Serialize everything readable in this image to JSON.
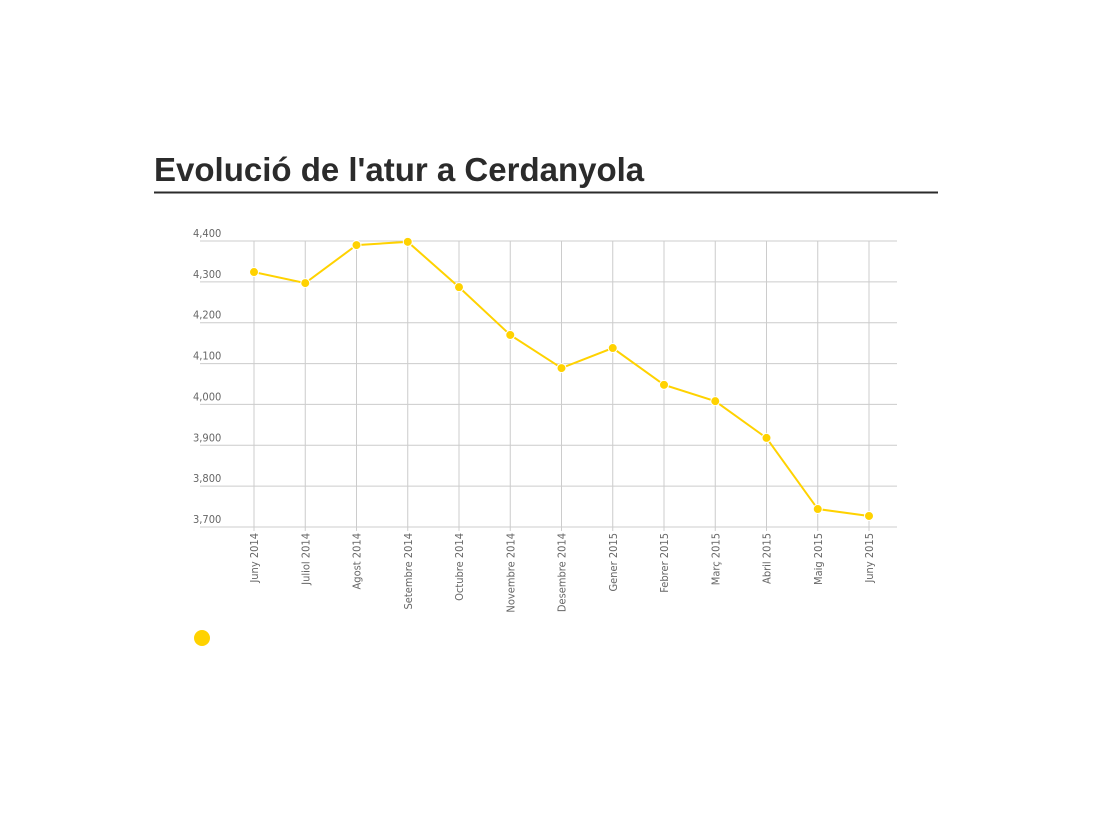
{
  "chart_data": {
    "type": "line",
    "title": "Evolució de l'atur a Cerdanyola",
    "categories": [
      "Juny 2014",
      "Juliol 2014",
      "Agost 2014",
      "Setembre 2014",
      "Octubre 2014",
      "Novembre 2014",
      "Desembre 2014",
      "Gener 2015",
      "Febrer 2015",
      "Març 2015",
      "Abril 2015",
      "Maig 2015",
      "Juny 2015"
    ],
    "values": [
      4324,
      4297,
      4390,
      4398,
      4287,
      4170,
      4089,
      4138,
      4048,
      4008,
      3918,
      3744,
      3727
    ],
    "color": "#ffd200",
    "ylim": [
      3700,
      4400
    ],
    "yticks": [
      {
        "value": 3700,
        "label": "3,700"
      },
      {
        "value": 3800,
        "label": "3,800"
      },
      {
        "value": 3900,
        "label": "3,900"
      },
      {
        "value": 4000,
        "label": "4,000"
      },
      {
        "value": 4100,
        "label": "4,100"
      },
      {
        "value": 4200,
        "label": "4,200"
      },
      {
        "value": 4300,
        "label": "4,300"
      },
      {
        "value": 4400,
        "label": "4,400"
      }
    ],
    "grid": true
  }
}
